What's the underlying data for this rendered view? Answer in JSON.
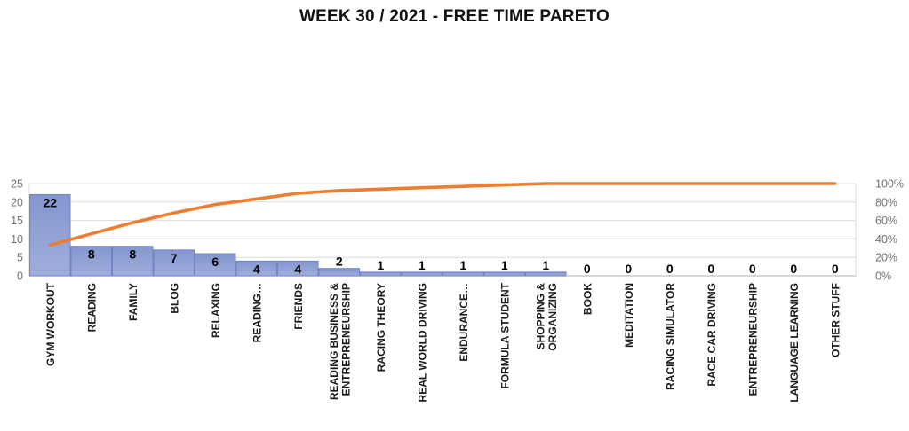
{
  "chart_data": {
    "type": "bar",
    "subtype": "pareto",
    "title": "WEEK 30 / 2021 - FREE TIME PARETO",
    "categories": [
      "GYM WORKOUT",
      "READING",
      "FAMILY",
      "BLOG",
      "RELAXING",
      "READING…",
      "FRIENDS",
      "READING BUSINESS & ENTREPRENEURSHIP",
      "RACING THEORY",
      "REAL WORLD DRIVING",
      "ENDURANCE…",
      "FORMULA STUDENT",
      "SHOPPING & ORGANIZING",
      "BOOK",
      "MEDITATION",
      "RACING SIMULATOR",
      "RACE CAR DRIVING",
      "ENTREPRENEURSHIP",
      "LANGUAGE LEARNING",
      "OTHER STUFF"
    ],
    "category_lines": [
      [
        "GYM WORKOUT"
      ],
      [
        "READING"
      ],
      [
        "FAMILY"
      ],
      [
        "BLOG"
      ],
      [
        "RELAXING"
      ],
      [
        "READING…"
      ],
      [
        "FRIENDS"
      ],
      [
        "READING BUSINESS &",
        "ENTREPRENEURSHIP"
      ],
      [
        "RACING THEORY"
      ],
      [
        "REAL WORLD DRIVING"
      ],
      [
        "ENDURANCE…"
      ],
      [
        "FORMULA STUDENT"
      ],
      [
        "SHOPPING &",
        "ORGANIZING"
      ],
      [
        "BOOK"
      ],
      [
        "MEDITATION"
      ],
      [
        "RACING SIMULATOR"
      ],
      [
        "RACE CAR DRIVING"
      ],
      [
        "ENTREPRENEURSHIP"
      ],
      [
        "LANGUAGE LEARNING"
      ],
      [
        "OTHER STUFF"
      ]
    ],
    "series": [
      {
        "name": "count",
        "type": "bar",
        "values": [
          22,
          8,
          8,
          7,
          6,
          4,
          4,
          2,
          1,
          1,
          1,
          1,
          1,
          0,
          0,
          0,
          0,
          0,
          0,
          0
        ],
        "data_labels": [
          "22",
          "8",
          "8",
          "7",
          "6",
          "4",
          "4",
          "2",
          "1",
          "1",
          "1",
          "1",
          "1",
          "0",
          "0",
          "0",
          "0",
          "0",
          "0",
          "0"
        ]
      },
      {
        "name": "cumulative-percent",
        "type": "line",
        "values": [
          33.33,
          45.45,
          57.58,
          68.18,
          77.27,
          83.33,
          89.39,
          92.42,
          93.94,
          95.45,
          96.97,
          98.48,
          100,
          100,
          100,
          100,
          100,
          100,
          100,
          100
        ]
      }
    ],
    "value_axis": {
      "ticks": [
        "0",
        "5",
        "10",
        "15",
        "20",
        "25"
      ],
      "min": 0,
      "max": 25
    },
    "percent_axis": {
      "ticks": [
        "0%",
        "20%",
        "40%",
        "60%",
        "80%",
        "100%"
      ],
      "min": 0,
      "max": 100
    },
    "grid": true,
    "legend": "none",
    "colors": {
      "bar_fill_top": "#8496cf",
      "bar_fill_bottom": "#a0aedd",
      "bar_border": "#7283c6",
      "line": "#ed7d31",
      "axis_text": "#737373",
      "gridline": "#d9d9d9",
      "axis_line": "#bfbfbf",
      "title_text": "#111111",
      "label_text": "#000000",
      "background": "#ffffff"
    }
  }
}
